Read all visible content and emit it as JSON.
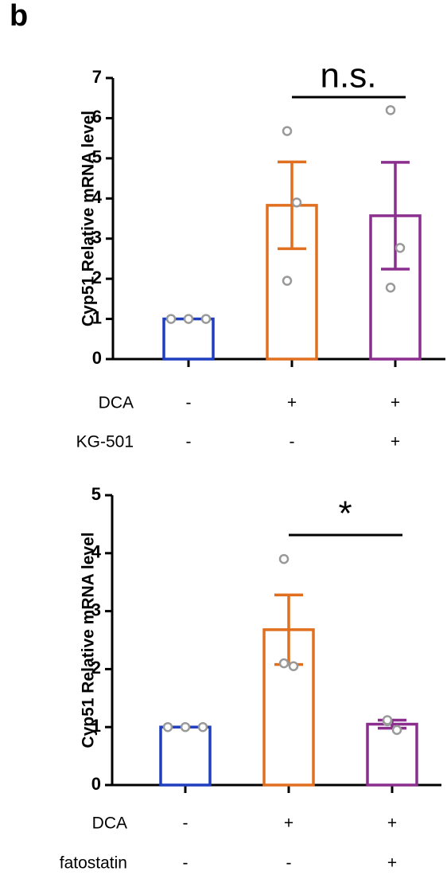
{
  "panel_label": "b",
  "chart_data": [
    {
      "type": "bar",
      "ylabel": "Cyp51 Relative mRNA level",
      "conditions": [
        {
          "name": "DCA",
          "values": [
            "-",
            "+",
            "+"
          ]
        },
        {
          "name": "KG-501",
          "values": [
            "-",
            "-",
            "+"
          ]
        }
      ],
      "values": [
        1,
        3.83,
        3.57
      ],
      "errors": [
        0,
        1.08,
        1.33
      ],
      "colors": [
        "#1f3fbf",
        "#e07020",
        "#8b2f8f"
      ],
      "points": [
        [
          1,
          1,
          1
        ],
        [
          5.68,
          3.9,
          1.95
        ],
        [
          6.2,
          2.77,
          1.78
        ]
      ],
      "significance": {
        "label": "n.s.",
        "between": [
          1,
          2
        ]
      },
      "ylim": [
        0,
        7
      ],
      "yticks": [
        0,
        1,
        2,
        3,
        4,
        5,
        6,
        7
      ]
    },
    {
      "type": "bar",
      "ylabel": "Cyp51 Relative mRNA level",
      "conditions": [
        {
          "name": "DCA",
          "values": [
            "-",
            "+",
            "+"
          ]
        },
        {
          "name": "fatostatin",
          "values": [
            "-",
            "-",
            "+"
          ]
        }
      ],
      "values": [
        1,
        2.68,
        1.05
      ],
      "errors": [
        0,
        0.6,
        0.07
      ],
      "colors": [
        "#1f3fbf",
        "#e07020",
        "#8b2f8f"
      ],
      "points": [
        [
          1,
          1,
          1
        ],
        [
          3.9,
          2.05,
          2.1
        ],
        [
          1.1,
          0.95,
          1.12
        ]
      ],
      "significance": {
        "label": "*",
        "between": [
          1,
          2
        ]
      },
      "ylim": [
        0,
        5
      ],
      "yticks": [
        0,
        1,
        2,
        3,
        4,
        5
      ]
    }
  ]
}
